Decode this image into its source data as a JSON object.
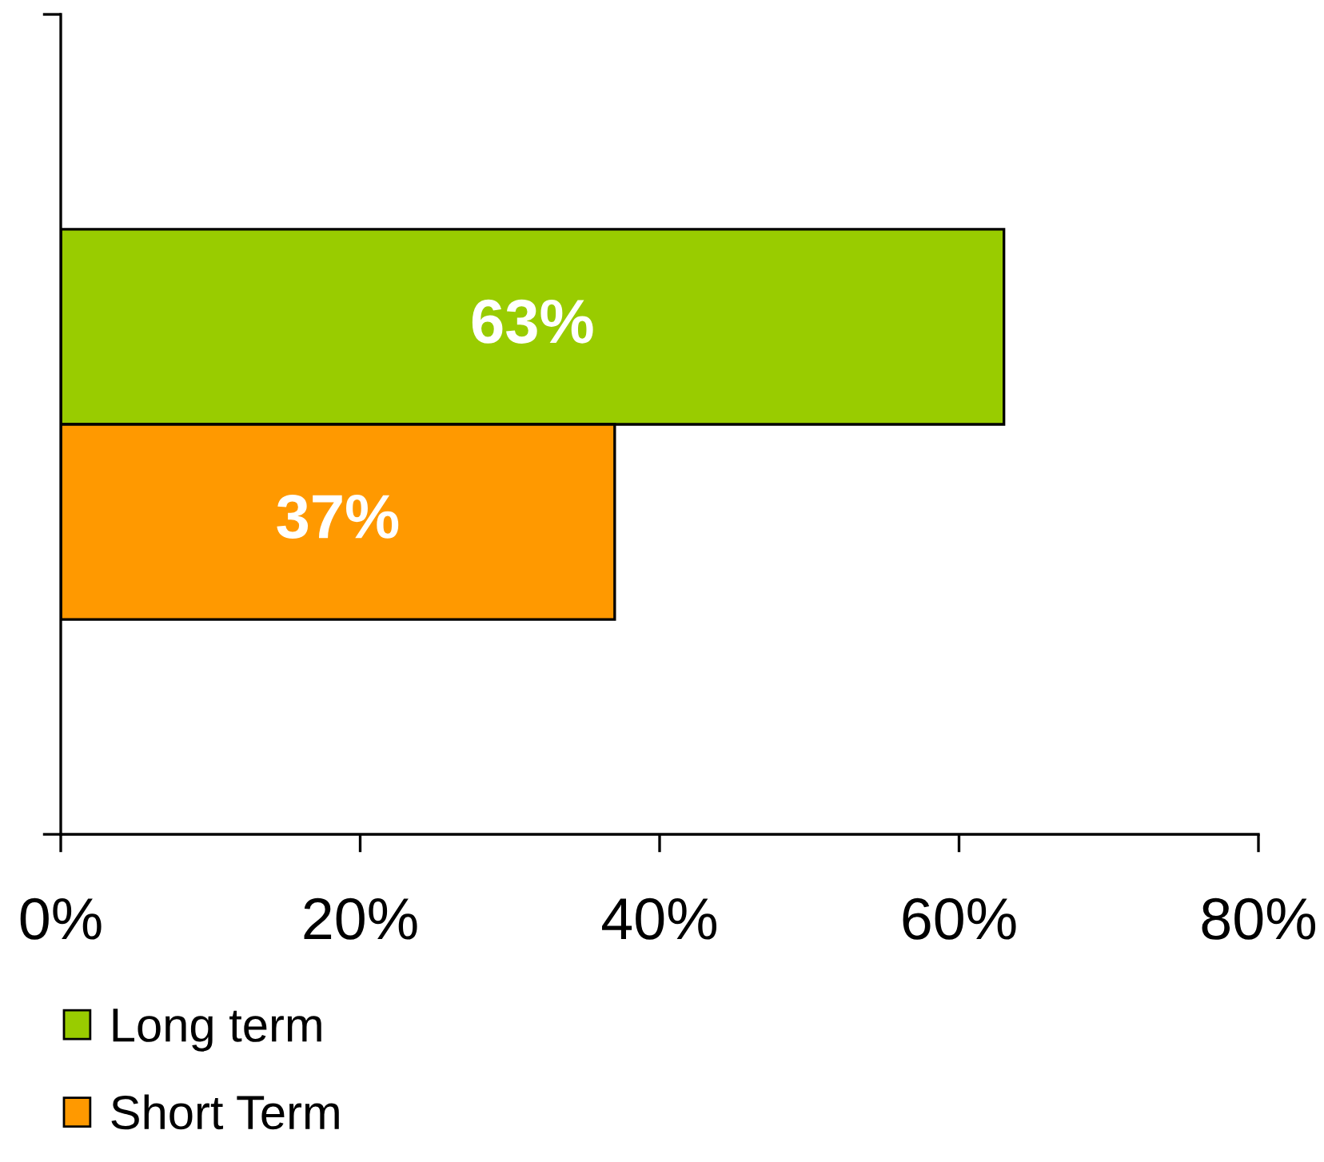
{
  "chart_data": {
    "type": "bar",
    "orientation": "horizontal",
    "categories": [
      null
    ],
    "series": [
      {
        "name": "Long term",
        "color": "#99cc00",
        "values": [
          63
        ],
        "value_labels": [
          "63%"
        ]
      },
      {
        "name": "Short Term",
        "color": "#ff9900",
        "values": [
          37
        ],
        "value_labels": [
          "37%"
        ]
      }
    ],
    "xlim": [
      0,
      80
    ],
    "xticks": [
      {
        "value": 0,
        "label": "0%"
      },
      {
        "value": 20,
        "label": "20%"
      },
      {
        "value": 40,
        "label": "40%"
      },
      {
        "value": 60,
        "label": "60%"
      },
      {
        "value": 80,
        "label": "80%"
      }
    ],
    "grid": false,
    "legend": "bottom left"
  }
}
